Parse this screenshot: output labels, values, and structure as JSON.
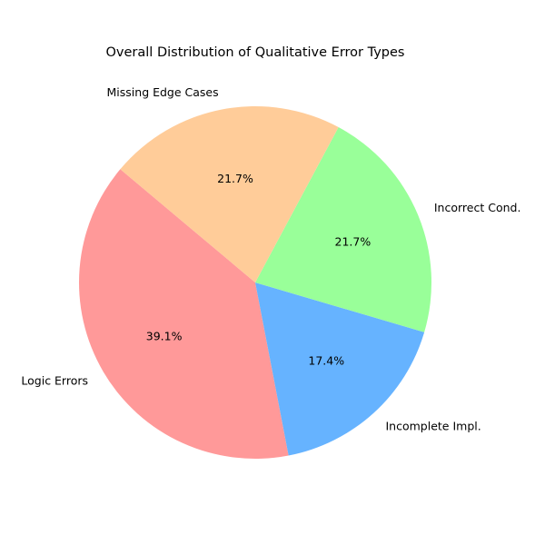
{
  "chart_data": {
    "type": "pie",
    "title": "Overall Distribution of Qualitative Error Types",
    "categories": [
      "Logic Errors",
      "Incomplete Impl.",
      "Incorrect Cond.",
      "Missing Edge Cases"
    ],
    "values": [
      39.1,
      17.4,
      21.7,
      21.7
    ],
    "percent_labels": [
      "39.1%",
      "17.4%",
      "21.7%",
      "21.7%"
    ],
    "colors": [
      "#ff9999",
      "#66b3ff",
      "#99ff99",
      "#ffcc99"
    ],
    "start_angle_deg": 140,
    "direction": "counterclockwise",
    "legend": "none"
  }
}
